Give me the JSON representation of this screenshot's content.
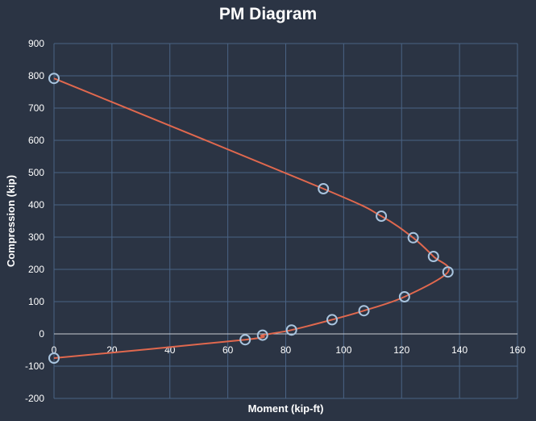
{
  "chart_data": {
    "type": "scatter",
    "title": "PM Diagram",
    "xlabel": "Moment (kip-ft)",
    "ylabel": "Compression (kip)",
    "xlim": [
      0,
      160
    ],
    "ylim": [
      -200,
      900
    ],
    "x_ticks": [
      0,
      20,
      40,
      60,
      80,
      100,
      120,
      140,
      160
    ],
    "y_ticks": [
      -200,
      -100,
      0,
      100,
      200,
      300,
      400,
      500,
      600,
      700,
      800,
      900
    ],
    "x_tick_labels": [
      "0",
      "20",
      "40",
      "60",
      "80",
      "100",
      "120",
      "140",
      "160"
    ],
    "y_tick_labels": [
      "-200",
      "-100",
      "0",
      "100",
      "200",
      "300",
      "400",
      "500",
      "600",
      "700",
      "800",
      "900"
    ],
    "grid": true,
    "legend": "none",
    "colors": {
      "line": "#e0684e",
      "marker": "#a9c4de",
      "grid": "#4a6384",
      "background": "#2b3444"
    },
    "series": [
      {
        "points": [
          [
            0,
            792
          ],
          [
            93,
            450
          ],
          [
            113,
            365
          ],
          [
            124,
            298
          ],
          [
            131,
            240
          ],
          [
            136,
            192
          ],
          [
            121,
            115
          ],
          [
            107,
            72
          ],
          [
            96,
            44
          ],
          [
            82,
            12
          ],
          [
            72,
            -4
          ],
          [
            66,
            -18
          ],
          [
            0,
            -75
          ]
        ]
      }
    ]
  }
}
